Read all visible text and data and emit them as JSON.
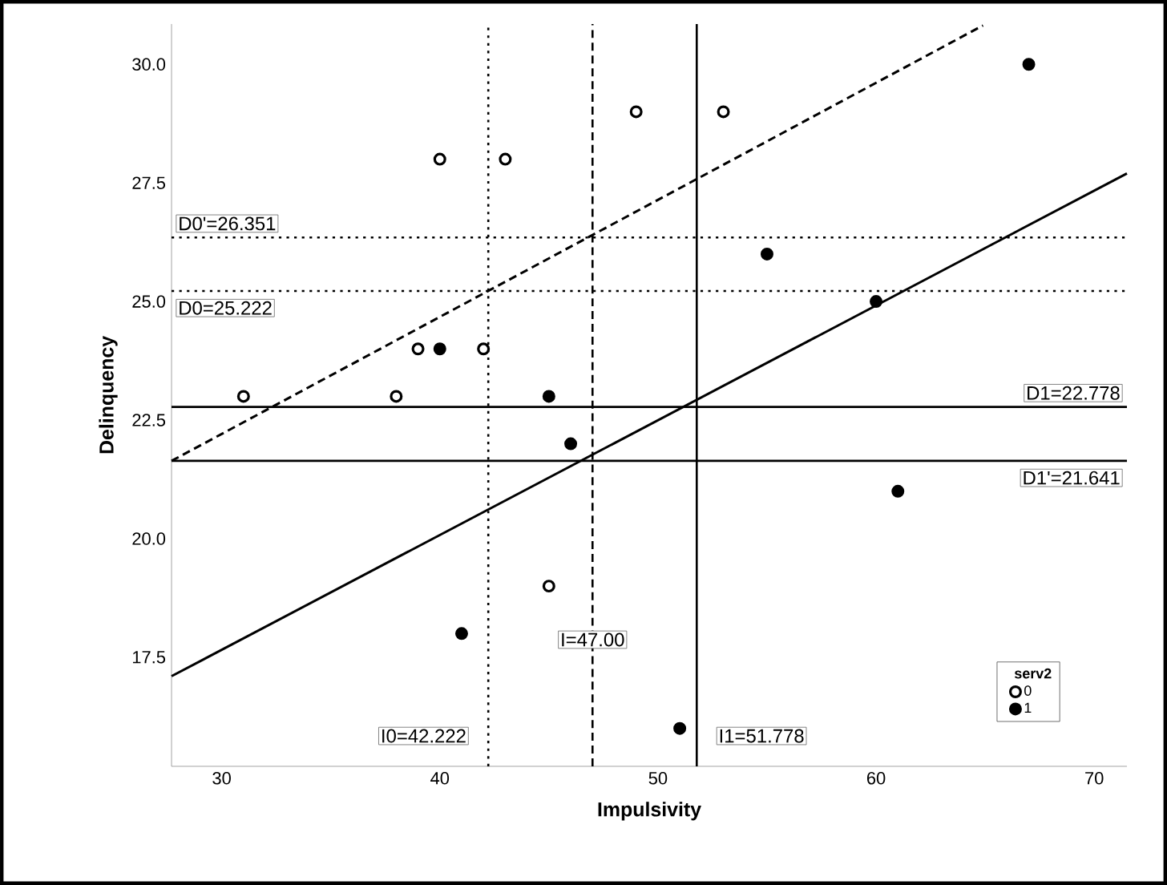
{
  "chart_data": {
    "type": "scatter",
    "xlabel": "Impulsivity",
    "ylabel": "Delinquency",
    "legend_title": "serv2",
    "xlim": [
      27.7,
      71.5
    ],
    "ylim": [
      15.2,
      30.85
    ],
    "xticks": [
      30,
      40,
      50,
      60,
      70
    ],
    "yticks": [
      {
        "value": 17.5,
        "label": "17.5"
      },
      {
        "value": 20,
        "label": "20.0"
      },
      {
        "value": 22.5,
        "label": "22.5"
      },
      {
        "value": 25,
        "label": "25.0"
      },
      {
        "value": 27.5,
        "label": "27.5"
      },
      {
        "value": 30,
        "label": "30.0"
      }
    ],
    "grid": false,
    "legend": "bottom right",
    "series": [
      {
        "name": "0",
        "color": "#000000",
        "marker": "circle",
        "x": [
          31,
          38,
          39,
          40,
          42,
          43,
          45,
          49,
          53
        ],
        "values": [
          23,
          23,
          24,
          28,
          24,
          28,
          19,
          29,
          29
        ]
      },
      {
        "name": "1",
        "color": "#000000",
        "marker": "circle",
        "x": [
          40,
          41,
          45,
          46,
          51,
          55,
          60,
          61,
          67
        ],
        "values": [
          24,
          18,
          23,
          22,
          16,
          26,
          25,
          21,
          30
        ]
      },
      {
        "type": "line",
        "color": "#000000",
        "line_style": "dashed",
        "marker": "none",
        "x": [
          27.7,
          64.9
        ],
        "values": [
          21.64,
          30.82
        ]
      },
      {
        "type": "line",
        "color": "#000000",
        "line_style": "solid",
        "marker": "none",
        "x": [
          27.7,
          71.5
        ],
        "values": [
          17.1,
          27.7
        ]
      }
    ],
    "ref_lines": [
      {
        "axis": "y",
        "value": 26.351,
        "label": "D0'=26.351",
        "line_style": "dotted"
      },
      {
        "axis": "y",
        "value": 25.222,
        "label": "D0=25.222",
        "line_style": "dotted"
      },
      {
        "axis": "y",
        "value": 22.778,
        "label": "D1=22.778",
        "line_style": "solid"
      },
      {
        "axis": "y",
        "value": 21.641,
        "label": "D1'=21.641",
        "line_style": "solid"
      },
      {
        "axis": "x",
        "value": 42.222,
        "label": "I0=42.222",
        "line_style": "dotted"
      },
      {
        "axis": "x",
        "value": 47.0,
        "label": "I=47.00",
        "line_style": "dashed"
      },
      {
        "axis": "x",
        "value": 51.778,
        "label": "I1=51.778",
        "line_style": "solid"
      }
    ]
  }
}
